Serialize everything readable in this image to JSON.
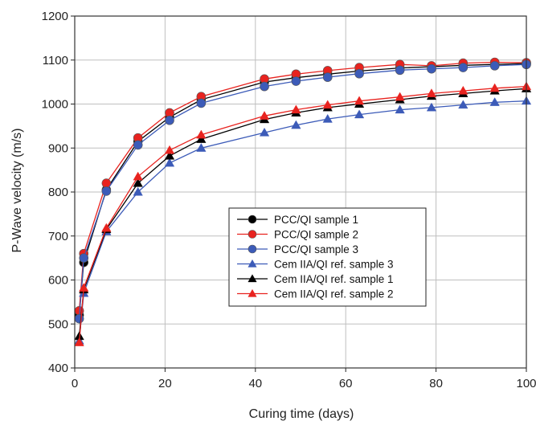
{
  "chart_data": {
    "type": "line",
    "xlabel": "Curing time (days)",
    "ylabel": "P-Wave velocity (m/s)",
    "xlim": [
      0,
      100
    ],
    "ylim": [
      400,
      1200
    ],
    "xticks": [
      "0",
      "20",
      "40",
      "60",
      "80",
      "100"
    ],
    "yticks": [
      "400",
      "500",
      "600",
      "700",
      "800",
      "900",
      "1000",
      "1100",
      "1200"
    ],
    "grid": true,
    "legend_position": "center-right",
    "series": [
      {
        "name": "PCC/QI sample 1",
        "marker": "circle",
        "color": "#000000",
        "x": [
          1,
          2,
          7,
          14,
          21,
          28,
          42,
          49,
          56,
          63,
          72,
          79,
          86,
          93,
          100
        ],
        "y": [
          520,
          640,
          805,
          915,
          970,
          1010,
          1050,
          1060,
          1068,
          1075,
          1082,
          1085,
          1088,
          1090,
          1092
        ]
      },
      {
        "name": "PCC/QI sample 2",
        "marker": "circle",
        "color": "#e8231f",
        "x": [
          1,
          2,
          7,
          14,
          21,
          28,
          42,
          49,
          56,
          63,
          72,
          79,
          86,
          93,
          100
        ],
        "y": [
          530,
          660,
          820,
          923,
          980,
          1017,
          1057,
          1068,
          1076,
          1083,
          1090,
          1087,
          1093,
          1095,
          1094
        ]
      },
      {
        "name": "PCC/QI sample 3",
        "marker": "circle",
        "color": "#3c5bb8",
        "x": [
          1,
          2,
          7,
          14,
          21,
          28,
          42,
          49,
          56,
          63,
          72,
          79,
          86,
          93,
          100
        ],
        "y": [
          512,
          650,
          802,
          907,
          963,
          1002,
          1040,
          1052,
          1061,
          1069,
          1077,
          1080,
          1083,
          1087,
          1090
        ]
      },
      {
        "name": "Cem IIA/QI ref. sample 3",
        "marker": "triangle",
        "color": "#3c5bb8",
        "x": [
          1,
          2,
          7,
          14,
          21,
          28,
          42,
          49,
          56,
          63,
          72,
          79,
          86,
          93,
          100
        ],
        "y": [
          462,
          570,
          710,
          800,
          866,
          900,
          935,
          952,
          966,
          976,
          987,
          992,
          998,
          1004,
          1007
        ]
      },
      {
        "name": "Cem IIA/QI ref. sample 1",
        "marker": "triangle",
        "color": "#000000",
        "x": [
          1,
          2,
          7,
          14,
          21,
          28,
          42,
          49,
          56,
          63,
          72,
          79,
          86,
          93,
          100
        ],
        "y": [
          472,
          578,
          715,
          820,
          882,
          920,
          965,
          980,
          992,
          1000,
          1010,
          1018,
          1024,
          1030,
          1035
        ]
      },
      {
        "name": "Cem IIA/QI ref. sample 2",
        "marker": "triangle",
        "color": "#e8231f",
        "x": [
          1,
          2,
          7,
          14,
          21,
          28,
          42,
          49,
          56,
          63,
          72,
          79,
          86,
          93,
          100
        ],
        "y": [
          458,
          582,
          718,
          835,
          895,
          930,
          973,
          987,
          998,
          1007,
          1016,
          1024,
          1030,
          1036,
          1040
        ]
      }
    ]
  }
}
